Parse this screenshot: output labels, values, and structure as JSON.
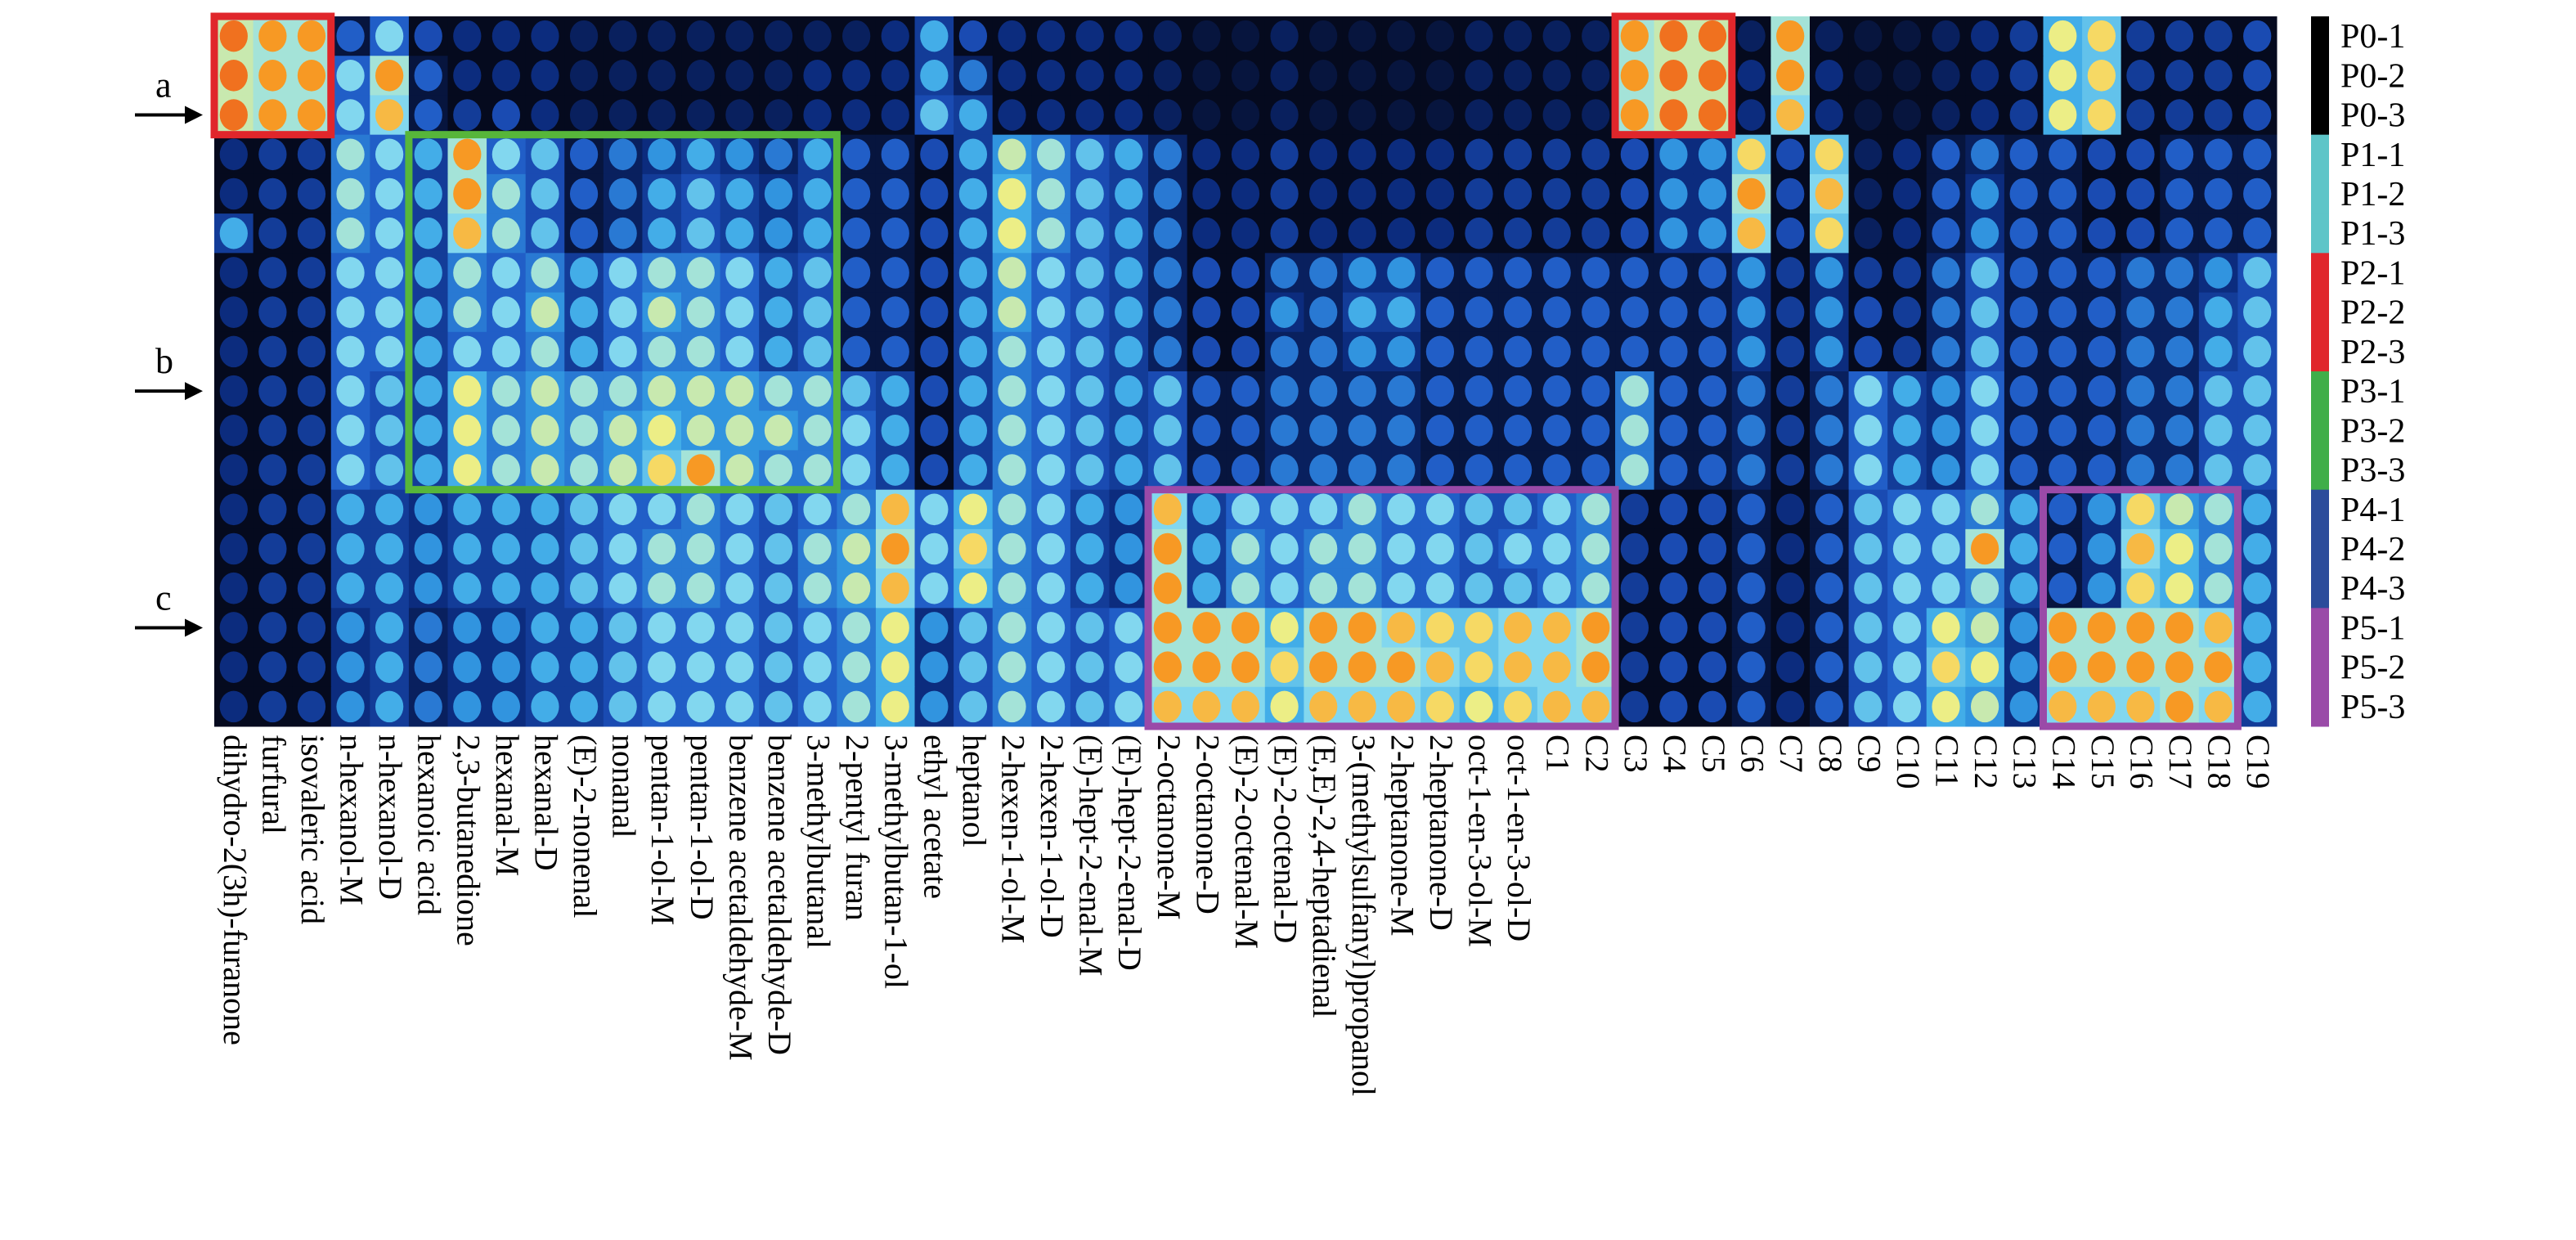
{
  "chart_data": {
    "type": "heatmap",
    "title": "",
    "xlabel": "",
    "ylabel": "",
    "columns": [
      "dihydro-2(3h)-furanone",
      "furfural",
      "isovaleric acid",
      "n-hexanol-M",
      "n-hexanol-D",
      "hexanoic acid",
      "2,3-butanedione",
      "hexanal-M",
      "hexanal-D",
      "(E)-2-nonenal",
      "nonanal",
      "pentan-1-ol-M",
      "pentan-1-ol-D",
      "benzene acetaldehyde-M",
      "benzene acetaldehyde-D",
      "3-methylbutanal",
      "2-pentyl furan",
      "3-methylbutan-1-ol",
      "ethyl acetate",
      "heptanol",
      "2-hexen-1-ol-M",
      "2-hexen-1-ol-D",
      "(E)-hept-2-enal-M",
      "(E)-hept-2-enal-D",
      "2-octanone-M",
      "2-octanone-D",
      "(E)-2-octenal-M",
      "(E)-2-octenal-D",
      "(E,E)-2,4-heptadienal",
      "3-(methylsulfanyl)propanol",
      "2-heptanone-M",
      "2-heptanone-D",
      "oct-1-en-3-ol-M",
      "oct-1-en-3-ol-D",
      "C1",
      "C2",
      "C3",
      "C4",
      "C5",
      "C6",
      "C7",
      "C8",
      "C9",
      "C10",
      "C11",
      "C12",
      "C13",
      "C14",
      "C15",
      "C16",
      "C17",
      "C18",
      "C19"
    ],
    "rows": [
      "P0-1",
      "P0-2",
      "P0-3",
      "P1-1",
      "P1-2",
      "P1-3",
      "P2-1",
      "P2-2",
      "P2-3",
      "P3-1",
      "P3-2",
      "P3-3",
      "P4-1",
      "P4-2",
      "P4-3",
      "P5-1",
      "P5-2",
      "P5-3"
    ],
    "groups": [
      {
        "name": "P0",
        "color": "#000000"
      },
      {
        "name": "P1",
        "color": "#5ec5c8"
      },
      {
        "name": "P2",
        "color": "#e0262b"
      },
      {
        "name": "P3",
        "color": "#3fae49"
      },
      {
        "name": "P4",
        "color": "#2b4c9b"
      },
      {
        "name": "P5",
        "color": "#9a4aa8"
      }
    ],
    "pointers": [
      "a",
      "b",
      "c"
    ],
    "colorscale": [
      "#050a1e",
      "#0b2a7a",
      "#1f56c4",
      "#35a4e6",
      "#8fe0f0",
      "#f6f07a",
      "#f79420",
      "#e0201e"
    ],
    "highlight_boxes": [
      {
        "color": "#e0262b",
        "rows": [
          0,
          2
        ],
        "cols": [
          0,
          2
        ]
      },
      {
        "color": "#e0262b",
        "rows": [
          0,
          2
        ],
        "cols": [
          36,
          38
        ]
      },
      {
        "color": "#57b63a",
        "rows": [
          3,
          11
        ],
        "cols": [
          5,
          15
        ]
      },
      {
        "color": "#9a4aa8",
        "rows": [
          12,
          17
        ],
        "cols": [
          24,
          35
        ]
      },
      {
        "color": "#9a4aa8",
        "rows": [
          12,
          17
        ],
        "cols": [
          47,
          51
        ]
      }
    ],
    "values": [
      [
        0.9,
        0.85,
        0.85,
        0.3,
        0.55,
        0.25,
        0.15,
        0.15,
        0.15,
        0.1,
        0.1,
        0.1,
        0.1,
        0.1,
        0.1,
        0.1,
        0.1,
        0.15,
        0.45,
        0.25,
        0.15,
        0.15,
        0.15,
        0.15,
        0.1,
        0.05,
        0.05,
        0.1,
        0.05,
        0.05,
        0.05,
        0.05,
        0.1,
        0.1,
        0.1,
        0.1,
        0.85,
        0.9,
        0.9,
        0.1,
        0.85,
        0.1,
        0.05,
        0.05,
        0.1,
        0.15,
        0.2,
        0.7,
        0.75,
        0.2,
        0.2,
        0.2,
        0.25
      ],
      [
        0.9,
        0.85,
        0.85,
        0.55,
        0.85,
        0.3,
        0.15,
        0.15,
        0.15,
        0.1,
        0.1,
        0.1,
        0.1,
        0.1,
        0.1,
        0.15,
        0.15,
        0.15,
        0.45,
        0.35,
        0.15,
        0.15,
        0.15,
        0.15,
        0.1,
        0.05,
        0.05,
        0.1,
        0.05,
        0.05,
        0.05,
        0.05,
        0.1,
        0.1,
        0.1,
        0.1,
        0.85,
        0.9,
        0.9,
        0.15,
        0.85,
        0.15,
        0.05,
        0.05,
        0.1,
        0.15,
        0.2,
        0.7,
        0.75,
        0.2,
        0.2,
        0.2,
        0.25
      ],
      [
        0.9,
        0.85,
        0.85,
        0.55,
        0.8,
        0.3,
        0.2,
        0.25,
        0.15,
        0.1,
        0.1,
        0.1,
        0.1,
        0.1,
        0.1,
        0.15,
        0.15,
        0.15,
        0.5,
        0.45,
        0.15,
        0.15,
        0.15,
        0.15,
        0.1,
        0.05,
        0.05,
        0.1,
        0.05,
        0.05,
        0.05,
        0.05,
        0.1,
        0.1,
        0.1,
        0.1,
        0.85,
        0.9,
        0.9,
        0.15,
        0.8,
        0.15,
        0.05,
        0.05,
        0.1,
        0.15,
        0.2,
        0.7,
        0.75,
        0.2,
        0.2,
        0.2,
        0.25
      ],
      [
        0.15,
        0.2,
        0.2,
        0.6,
        0.55,
        0.45,
        0.85,
        0.55,
        0.5,
        0.3,
        0.35,
        0.4,
        0.45,
        0.4,
        0.35,
        0.45,
        0.3,
        0.3,
        0.25,
        0.45,
        0.65,
        0.6,
        0.5,
        0.45,
        0.35,
        0.15,
        0.15,
        0.2,
        0.15,
        0.15,
        0.15,
        0.15,
        0.2,
        0.2,
        0.2,
        0.2,
        0.25,
        0.4,
        0.4,
        0.75,
        0.25,
        0.75,
        0.1,
        0.15,
        0.3,
        0.35,
        0.3,
        0.3,
        0.25,
        0.25,
        0.3,
        0.3,
        0.3
      ],
      [
        0.15,
        0.2,
        0.2,
        0.6,
        0.55,
        0.45,
        0.85,
        0.6,
        0.5,
        0.3,
        0.35,
        0.45,
        0.5,
        0.45,
        0.4,
        0.45,
        0.3,
        0.3,
        0.25,
        0.45,
        0.7,
        0.6,
        0.5,
        0.45,
        0.35,
        0.15,
        0.15,
        0.2,
        0.15,
        0.15,
        0.15,
        0.15,
        0.2,
        0.2,
        0.2,
        0.2,
        0.25,
        0.4,
        0.4,
        0.85,
        0.25,
        0.8,
        0.1,
        0.15,
        0.3,
        0.4,
        0.3,
        0.3,
        0.25,
        0.25,
        0.3,
        0.3,
        0.3
      ],
      [
        0.45,
        0.2,
        0.2,
        0.6,
        0.55,
        0.45,
        0.8,
        0.6,
        0.5,
        0.3,
        0.35,
        0.45,
        0.5,
        0.45,
        0.4,
        0.45,
        0.3,
        0.3,
        0.25,
        0.45,
        0.7,
        0.6,
        0.5,
        0.45,
        0.35,
        0.15,
        0.15,
        0.2,
        0.15,
        0.15,
        0.15,
        0.15,
        0.2,
        0.2,
        0.2,
        0.2,
        0.25,
        0.4,
        0.4,
        0.8,
        0.25,
        0.75,
        0.1,
        0.15,
        0.3,
        0.4,
        0.3,
        0.3,
        0.25,
        0.25,
        0.3,
        0.3,
        0.3
      ],
      [
        0.15,
        0.2,
        0.2,
        0.55,
        0.55,
        0.45,
        0.6,
        0.55,
        0.6,
        0.45,
        0.55,
        0.6,
        0.6,
        0.55,
        0.45,
        0.5,
        0.3,
        0.3,
        0.25,
        0.45,
        0.65,
        0.55,
        0.5,
        0.45,
        0.35,
        0.25,
        0.25,
        0.35,
        0.35,
        0.4,
        0.4,
        0.3,
        0.3,
        0.3,
        0.3,
        0.3,
        0.3,
        0.3,
        0.3,
        0.4,
        0.2,
        0.4,
        0.2,
        0.2,
        0.35,
        0.5,
        0.3,
        0.3,
        0.3,
        0.35,
        0.35,
        0.4,
        0.5
      ],
      [
        0.15,
        0.2,
        0.2,
        0.55,
        0.55,
        0.45,
        0.6,
        0.55,
        0.65,
        0.45,
        0.55,
        0.65,
        0.6,
        0.55,
        0.45,
        0.5,
        0.3,
        0.3,
        0.25,
        0.45,
        0.65,
        0.55,
        0.5,
        0.45,
        0.35,
        0.25,
        0.25,
        0.4,
        0.35,
        0.45,
        0.45,
        0.3,
        0.3,
        0.3,
        0.3,
        0.3,
        0.3,
        0.3,
        0.3,
        0.4,
        0.2,
        0.4,
        0.25,
        0.2,
        0.35,
        0.5,
        0.3,
        0.3,
        0.3,
        0.35,
        0.35,
        0.45,
        0.5
      ],
      [
        0.15,
        0.2,
        0.2,
        0.55,
        0.55,
        0.45,
        0.55,
        0.55,
        0.6,
        0.45,
        0.55,
        0.6,
        0.6,
        0.55,
        0.45,
        0.5,
        0.3,
        0.3,
        0.25,
        0.45,
        0.6,
        0.55,
        0.5,
        0.45,
        0.35,
        0.25,
        0.25,
        0.35,
        0.35,
        0.4,
        0.4,
        0.3,
        0.3,
        0.3,
        0.3,
        0.3,
        0.3,
        0.3,
        0.3,
        0.4,
        0.2,
        0.4,
        0.25,
        0.2,
        0.35,
        0.5,
        0.3,
        0.3,
        0.3,
        0.35,
        0.35,
        0.45,
        0.5
      ],
      [
        0.15,
        0.2,
        0.2,
        0.55,
        0.5,
        0.45,
        0.7,
        0.6,
        0.65,
        0.6,
        0.6,
        0.65,
        0.65,
        0.65,
        0.6,
        0.6,
        0.5,
        0.45,
        0.25,
        0.45,
        0.6,
        0.55,
        0.5,
        0.45,
        0.5,
        0.3,
        0.3,
        0.35,
        0.35,
        0.35,
        0.35,
        0.3,
        0.3,
        0.3,
        0.3,
        0.3,
        0.6,
        0.3,
        0.3,
        0.35,
        0.2,
        0.35,
        0.55,
        0.45,
        0.4,
        0.55,
        0.3,
        0.3,
        0.3,
        0.35,
        0.35,
        0.5,
        0.5
      ],
      [
        0.15,
        0.2,
        0.2,
        0.55,
        0.5,
        0.45,
        0.7,
        0.6,
        0.65,
        0.6,
        0.65,
        0.7,
        0.65,
        0.65,
        0.65,
        0.6,
        0.55,
        0.45,
        0.25,
        0.45,
        0.6,
        0.55,
        0.5,
        0.45,
        0.5,
        0.3,
        0.3,
        0.35,
        0.35,
        0.35,
        0.35,
        0.3,
        0.3,
        0.3,
        0.3,
        0.3,
        0.6,
        0.3,
        0.3,
        0.35,
        0.2,
        0.35,
        0.55,
        0.45,
        0.4,
        0.55,
        0.3,
        0.3,
        0.3,
        0.35,
        0.35,
        0.5,
        0.5
      ],
      [
        0.15,
        0.2,
        0.2,
        0.55,
        0.5,
        0.45,
        0.7,
        0.6,
        0.65,
        0.6,
        0.65,
        0.75,
        0.85,
        0.65,
        0.6,
        0.6,
        0.55,
        0.45,
        0.25,
        0.45,
        0.6,
        0.55,
        0.5,
        0.45,
        0.5,
        0.3,
        0.3,
        0.35,
        0.35,
        0.35,
        0.35,
        0.3,
        0.3,
        0.3,
        0.3,
        0.3,
        0.6,
        0.3,
        0.3,
        0.35,
        0.2,
        0.35,
        0.55,
        0.45,
        0.4,
        0.55,
        0.3,
        0.3,
        0.3,
        0.35,
        0.35,
        0.5,
        0.5
      ],
      [
        0.15,
        0.2,
        0.2,
        0.45,
        0.45,
        0.4,
        0.45,
        0.45,
        0.45,
        0.5,
        0.55,
        0.55,
        0.6,
        0.55,
        0.5,
        0.55,
        0.6,
        0.8,
        0.55,
        0.7,
        0.6,
        0.55,
        0.45,
        0.4,
        0.8,
        0.45,
        0.55,
        0.55,
        0.55,
        0.6,
        0.55,
        0.55,
        0.5,
        0.5,
        0.55,
        0.6,
        0.2,
        0.25,
        0.25,
        0.3,
        0.15,
        0.3,
        0.5,
        0.55,
        0.55,
        0.6,
        0.45,
        0.3,
        0.4,
        0.75,
        0.65,
        0.6,
        0.45
      ],
      [
        0.15,
        0.2,
        0.2,
        0.45,
        0.45,
        0.4,
        0.45,
        0.45,
        0.45,
        0.5,
        0.55,
        0.6,
        0.6,
        0.55,
        0.5,
        0.6,
        0.65,
        0.85,
        0.55,
        0.75,
        0.6,
        0.55,
        0.45,
        0.4,
        0.85,
        0.45,
        0.6,
        0.55,
        0.6,
        0.6,
        0.55,
        0.55,
        0.5,
        0.55,
        0.55,
        0.6,
        0.2,
        0.25,
        0.25,
        0.3,
        0.15,
        0.3,
        0.5,
        0.55,
        0.55,
        0.85,
        0.45,
        0.3,
        0.4,
        0.8,
        0.7,
        0.6,
        0.45
      ],
      [
        0.15,
        0.2,
        0.2,
        0.45,
        0.45,
        0.4,
        0.45,
        0.45,
        0.45,
        0.5,
        0.55,
        0.6,
        0.6,
        0.55,
        0.5,
        0.6,
        0.65,
        0.8,
        0.55,
        0.7,
        0.6,
        0.55,
        0.45,
        0.4,
        0.85,
        0.45,
        0.6,
        0.55,
        0.6,
        0.6,
        0.55,
        0.55,
        0.5,
        0.5,
        0.55,
        0.6,
        0.2,
        0.25,
        0.25,
        0.3,
        0.15,
        0.3,
        0.5,
        0.55,
        0.55,
        0.6,
        0.45,
        0.3,
        0.4,
        0.75,
        0.7,
        0.6,
        0.45
      ],
      [
        0.15,
        0.2,
        0.2,
        0.4,
        0.45,
        0.35,
        0.4,
        0.4,
        0.45,
        0.45,
        0.5,
        0.55,
        0.55,
        0.55,
        0.5,
        0.55,
        0.6,
        0.7,
        0.4,
        0.5,
        0.6,
        0.55,
        0.5,
        0.55,
        0.85,
        0.85,
        0.85,
        0.7,
        0.85,
        0.85,
        0.8,
        0.75,
        0.75,
        0.8,
        0.8,
        0.85,
        0.2,
        0.25,
        0.25,
        0.3,
        0.15,
        0.3,
        0.5,
        0.55,
        0.7,
        0.65,
        0.4,
        0.85,
        0.85,
        0.85,
        0.85,
        0.8,
        0.45
      ],
      [
        0.15,
        0.2,
        0.2,
        0.4,
        0.45,
        0.35,
        0.4,
        0.4,
        0.45,
        0.45,
        0.5,
        0.55,
        0.55,
        0.55,
        0.5,
        0.55,
        0.6,
        0.7,
        0.4,
        0.5,
        0.6,
        0.55,
        0.5,
        0.55,
        0.85,
        0.85,
        0.85,
        0.75,
        0.85,
        0.85,
        0.85,
        0.8,
        0.75,
        0.8,
        0.8,
        0.85,
        0.2,
        0.25,
        0.25,
        0.3,
        0.15,
        0.3,
        0.5,
        0.55,
        0.75,
        0.7,
        0.4,
        0.85,
        0.85,
        0.85,
        0.85,
        0.85,
        0.45
      ],
      [
        0.15,
        0.2,
        0.2,
        0.4,
        0.45,
        0.35,
        0.4,
        0.4,
        0.45,
        0.45,
        0.5,
        0.55,
        0.55,
        0.55,
        0.5,
        0.55,
        0.6,
        0.7,
        0.4,
        0.5,
        0.6,
        0.55,
        0.5,
        0.55,
        0.8,
        0.8,
        0.8,
        0.7,
        0.8,
        0.8,
        0.8,
        0.75,
        0.7,
        0.75,
        0.8,
        0.8,
        0.2,
        0.25,
        0.25,
        0.3,
        0.15,
        0.3,
        0.5,
        0.55,
        0.7,
        0.65,
        0.4,
        0.8,
        0.8,
        0.8,
        0.85,
        0.8,
        0.45
      ]
    ]
  }
}
